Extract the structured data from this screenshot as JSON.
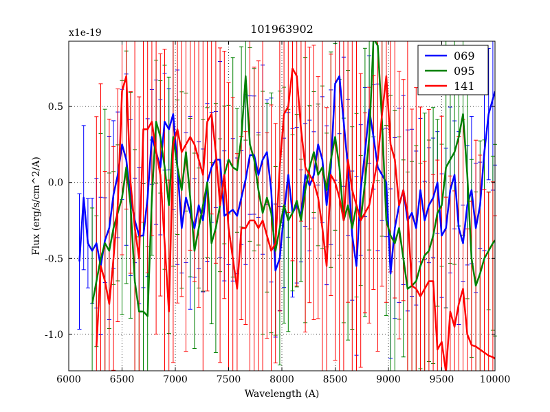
{
  "chart_data": {
    "type": "line",
    "title": "101963902",
    "xlabel": "Wavelength (A)",
    "ylabel": "Flux (erg/s/cm^2/A)",
    "y_scale_label": "x1e-19",
    "xlim": [
      6000,
      10000
    ],
    "ylim": [
      -1.24,
      0.93
    ],
    "xticks": [
      6000,
      6500,
      7000,
      7500,
      8000,
      8500,
      9000,
      9500,
      10000
    ],
    "xtick_labels": [
      "6000",
      "6500",
      "7000",
      "7500",
      "8000",
      "8500",
      "9000",
      "9500",
      "10000"
    ],
    "yticks": [
      0.5,
      0.0,
      -0.5,
      -1.0
    ],
    "ytick_labels": [
      "0.5",
      "0.0",
      "-0.5",
      "-1.0"
    ],
    "grid": true,
    "legend_position": "top-right",
    "series": [
      {
        "name": "069",
        "color": "#0000ff",
        "x": [
          6100,
          6140,
          6180,
          6220,
          6260,
          6300,
          6340,
          6380,
          6420,
          6460,
          6500,
          6540,
          6580,
          6620,
          6660,
          6700,
          6740,
          6780,
          6820,
          6860,
          6900,
          6940,
          6980,
          7020,
          7060,
          7100,
          7140,
          7180,
          7220,
          7260,
          7300,
          7340,
          7380,
          7420,
          7460,
          7500,
          7540,
          7580,
          7620,
          7660,
          7700,
          7740,
          7780,
          7820,
          7860,
          7900,
          7940,
          7980,
          8020,
          8060,
          8100,
          8140,
          8180,
          8220,
          8260,
          8300,
          8340,
          8380,
          8420,
          8460,
          8500,
          8540,
          8580,
          8620,
          8660,
          8700,
          8740,
          8780,
          8820,
          8860,
          8900,
          8940,
          8980,
          9020,
          9060,
          9100,
          9140,
          9180,
          9220,
          9260,
          9300,
          9340,
          9380,
          9420,
          9460,
          9500,
          9540,
          9580,
          9620,
          9660,
          9700,
          9740,
          9780,
          9820,
          9860,
          9900,
          9940,
          9980,
          10000
        ],
        "y": [
          -0.52,
          -0.1,
          -0.4,
          -0.45,
          -0.4,
          -0.55,
          -0.38,
          -0.3,
          -0.08,
          0.05,
          0.25,
          0.15,
          -0.1,
          -0.25,
          -0.35,
          -0.35,
          -0.1,
          0.3,
          0.2,
          0.1,
          0.4,
          0.35,
          0.45,
          0.1,
          -0.3,
          -0.1,
          -0.2,
          -0.3,
          -0.15,
          -0.25,
          0.0,
          0.1,
          0.15,
          0.15,
          -0.22,
          -0.2,
          -0.18,
          -0.22,
          -0.1,
          0.02,
          0.18,
          0.18,
          0.05,
          0.15,
          0.2,
          -0.05,
          -0.58,
          -0.5,
          -0.2,
          0.05,
          -0.2,
          -0.15,
          -0.22,
          0.05,
          -0.02,
          0.05,
          0.25,
          0.15,
          -0.15,
          0.1,
          0.65,
          0.7,
          0.4,
          0.1,
          -0.35,
          -0.55,
          -0.05,
          0.2,
          0.48,
          0.3,
          0.1,
          0.05,
          0.0,
          -0.6,
          -0.3,
          -0.15,
          -0.05,
          -0.25,
          -0.2,
          -0.3,
          -0.05,
          -0.25,
          -0.15,
          -0.1,
          0.0,
          -0.35,
          -0.3,
          -0.05,
          0.05,
          -0.3,
          -0.4,
          -0.15,
          -0.05,
          -0.3,
          -0.15,
          0.2,
          0.45,
          0.55,
          0.6
        ]
      },
      {
        "name": "095",
        "color": "#008000",
        "x": [
          6220,
          6260,
          6300,
          6340,
          6380,
          6420,
          6460,
          6500,
          6540,
          6580,
          6620,
          6660,
          6700,
          6740,
          6780,
          6820,
          6860,
          6900,
          6940,
          6980,
          7020,
          7060,
          7100,
          7140,
          7180,
          7220,
          7260,
          7300,
          7340,
          7380,
          7420,
          7460,
          7500,
          7540,
          7580,
          7620,
          7660,
          7700,
          7740,
          7780,
          7820,
          7860,
          7900,
          7940,
          7980,
          8020,
          8060,
          8100,
          8140,
          8180,
          8220,
          8260,
          8300,
          8340,
          8380,
          8420,
          8460,
          8500,
          8540,
          8580,
          8620,
          8660,
          8700,
          8740,
          8780,
          8820,
          8860,
          8900,
          8940,
          8980,
          9020,
          9060,
          9100,
          9140,
          9180,
          9220,
          9260,
          9300,
          9340,
          9380,
          9420,
          9460,
          9500,
          9540,
          9580,
          9620,
          9660,
          9700,
          9740,
          9780,
          9820,
          9860,
          9900,
          9940,
          9980,
          10000
        ],
        "y": [
          -0.8,
          -0.65,
          -0.5,
          -0.4,
          -0.45,
          -0.3,
          -0.2,
          -0.1,
          0.1,
          -0.15,
          -0.65,
          -0.85,
          -0.85,
          -0.88,
          -0.1,
          0.4,
          0.3,
          0.1,
          -0.15,
          0.3,
          0.1,
          -0.05,
          0.2,
          -0.1,
          -0.45,
          -0.3,
          -0.15,
          0.0,
          -0.4,
          -0.3,
          -0.15,
          0.05,
          0.15,
          0.1,
          0.08,
          0.3,
          0.7,
          0.25,
          0.15,
          -0.05,
          -0.2,
          -0.1,
          -0.2,
          -0.45,
          -0.3,
          -0.15,
          -0.25,
          -0.2,
          -0.12,
          -0.25,
          -0.05,
          0.1,
          0.2,
          0.05,
          0.1,
          -0.05,
          0.15,
          0.3,
          0.1,
          -0.25,
          -0.15,
          -0.3,
          -0.15,
          -0.25,
          0.0,
          0.3,
          0.95,
          0.9,
          0.4,
          -0.25,
          -0.35,
          -0.4,
          -0.3,
          -0.5,
          -0.7,
          -0.68,
          -0.65,
          -0.55,
          -0.48,
          -0.45,
          -0.35,
          -0.2,
          -0.15,
          0.1,
          0.15,
          0.2,
          0.3,
          0.45,
          0.05,
          -0.5,
          -0.68,
          -0.6,
          -0.5,
          -0.45,
          -0.4,
          -0.38
        ]
      },
      {
        "name": "141",
        "color": "#ff0000",
        "x": [
          6260,
          6300,
          6340,
          6380,
          6420,
          6460,
          6500,
          6540,
          6580,
          6620,
          6660,
          6700,
          6740,
          6780,
          6820,
          6860,
          6900,
          6940,
          6980,
          7020,
          7060,
          7100,
          7140,
          7180,
          7220,
          7260,
          7300,
          7340,
          7380,
          7420,
          7460,
          7500,
          7540,
          7580,
          7620,
          7660,
          7700,
          7740,
          7780,
          7820,
          7860,
          7900,
          7940,
          7980,
          8020,
          8060,
          8100,
          8140,
          8180,
          8220,
          8260,
          8300,
          8340,
          8380,
          8420,
          8460,
          8500,
          8540,
          8580,
          8620,
          8660,
          8700,
          8740,
          8780,
          8820,
          8860,
          8900,
          8940,
          8980,
          9020,
          9060,
          9100,
          9140,
          9180,
          9220,
          9260,
          9300,
          9340,
          9380,
          9420,
          9460,
          9500,
          9540,
          9580,
          9620,
          9660,
          9700,
          9740,
          9780,
          9820,
          9860,
          9900,
          9940,
          9980,
          10000
        ],
        "y": [
          -1.08,
          -0.55,
          -0.65,
          -0.8,
          -0.5,
          -0.15,
          0.6,
          0.7,
          0.0,
          -0.3,
          -0.5,
          0.35,
          0.35,
          0.4,
          0.2,
          0.05,
          -0.4,
          -0.85,
          0.25,
          0.35,
          0.2,
          0.25,
          0.3,
          0.25,
          0.15,
          0.05,
          0.4,
          0.45,
          0.2,
          -0.15,
          0.05,
          -0.3,
          -0.5,
          -0.7,
          -0.3,
          -0.3,
          -0.25,
          -0.25,
          -0.3,
          -0.25,
          -0.35,
          -0.45,
          -0.4,
          0.1,
          0.45,
          0.5,
          0.75,
          0.7,
          0.35,
          0.1,
          0.05,
          0.0,
          -0.1,
          -0.3,
          -0.55,
          0.05,
          0.0,
          -0.1,
          -0.25,
          0.15,
          -0.05,
          -0.15,
          -0.25,
          -0.2,
          -0.15,
          0.0,
          0.15,
          0.45,
          0.7,
          0.25,
          0.15,
          -0.15,
          -0.05,
          -0.2,
          -0.68,
          -0.7,
          -0.75,
          -0.7,
          -0.65,
          -0.65,
          -1.1,
          -1.05,
          -1.25,
          -0.85,
          -0.95,
          -0.8,
          -0.7,
          -1.0,
          -1.07,
          -1.08,
          -1.1,
          -1.12,
          -1.14,
          -1.15,
          -1.16
        ]
      }
    ]
  }
}
